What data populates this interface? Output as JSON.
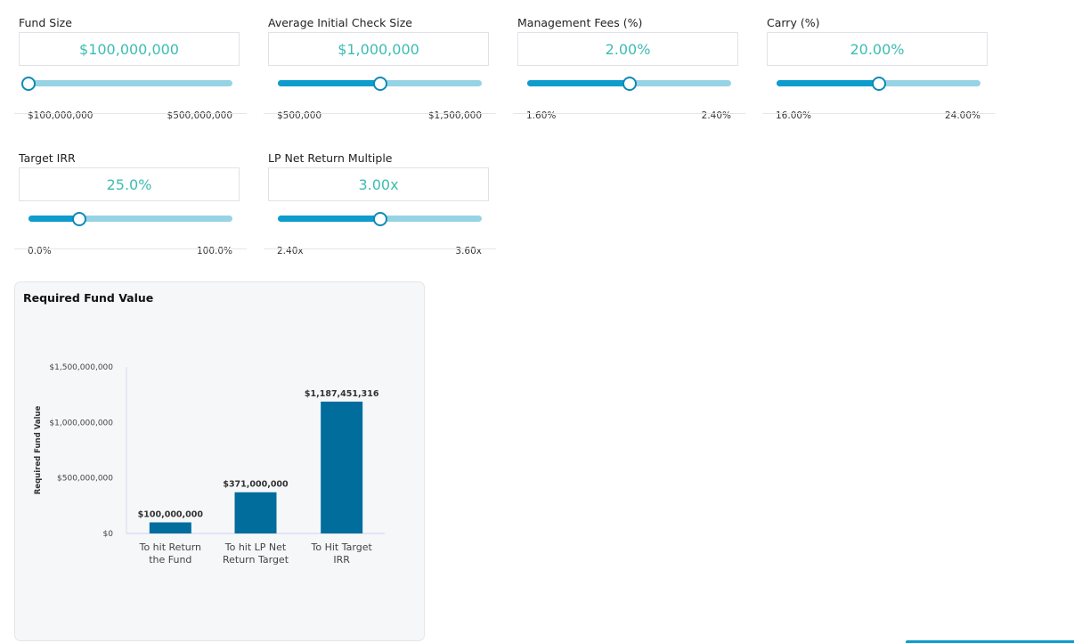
{
  "controls": [
    {
      "label": "Fund Size",
      "value": "$100,000,000",
      "min": "$100,000,000",
      "max": "$500,000,000",
      "position": 0.0
    },
    {
      "label": "Average Initial Check Size",
      "value": "$1,000,000",
      "min": "$500,000",
      "max": "$1,500,000",
      "position": 0.5
    },
    {
      "label": "Management Fees (%)",
      "value": "2.00%",
      "min": "1.60%",
      "max": "2.40%",
      "position": 0.5
    },
    {
      "label": "Carry (%)",
      "value": "20.00%",
      "min": "16.00%",
      "max": "24.00%",
      "position": 0.5
    },
    {
      "label": "Target IRR",
      "value": "25.0%",
      "min": "0.0%",
      "max": "100.0%",
      "position": 0.25
    },
    {
      "label": "LP Net Return Multiple",
      "value": "3.00x",
      "min": "2.40x",
      "max": "3.60x",
      "position": 0.5
    }
  ],
  "chart_title": "Required Fund Value",
  "chart_data": {
    "type": "bar",
    "title": "Required Fund Value",
    "ylabel": "Required Fund Value",
    "categories": [
      [
        "To hit Return",
        "the Fund"
      ],
      [
        "To hit LP Net",
        "Return Target"
      ],
      [
        "To Hit Target",
        "IRR"
      ]
    ],
    "values": [
      100000000,
      371000000,
      1187451316
    ],
    "value_labels": [
      "$100,000,000",
      "$371,000,000",
      "$1,187,451,316"
    ],
    "yticks": [
      0,
      500000000,
      1000000000,
      1500000000
    ],
    "ytick_labels": [
      "$0",
      "$500,000,000",
      "$1,000,000,000",
      "$1,500,000,000"
    ],
    "ylim": [
      0,
      1500000000
    ],
    "bar_color": "#006d9c"
  },
  "colors": {
    "accent": "#0d9ccd",
    "value_text": "#3dbdb2",
    "track": "#96d3e4"
  }
}
